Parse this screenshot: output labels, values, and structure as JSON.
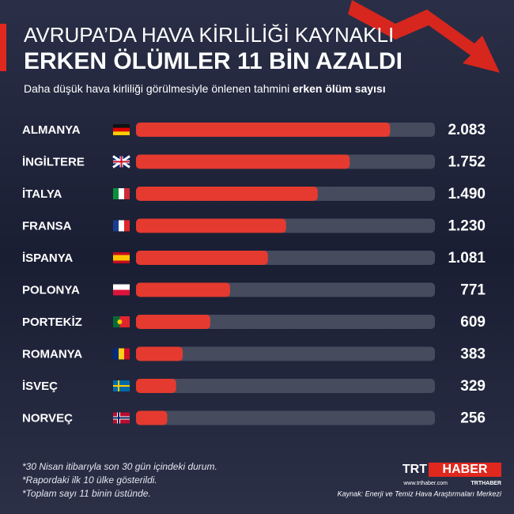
{
  "chart_data": {
    "type": "bar",
    "orientation": "horizontal",
    "title": "AVRUPA’DA HAVA KİRLİLİĞİ KAYNAKLI",
    "title_line2": "ERKEN ÖLÜMLER 11 BİN AZALDI",
    "subtitle": "Daha düşük hava kirliliği görülmesiyle önlenen tahmini ",
    "subtitle_emphasis": "erken ölüm sayısı",
    "categories": [
      "ALMANYA",
      "İNGİLTERE",
      "İTALYA",
      "FRANSA",
      "İSPANYA",
      "POLONYA",
      "PORTEKİZ",
      "ROMANYA",
      "İSVEÇ",
      "NORVEÇ"
    ],
    "values": [
      2083,
      1752,
      1490,
      1230,
      1081,
      771,
      609,
      383,
      329,
      256
    ],
    "value_labels": [
      "2.083",
      "1.752",
      "1.490",
      "1.230",
      "1.081",
      "771",
      "609",
      "383",
      "329",
      "256"
    ],
    "color": "#e53a2f",
    "notes": [
      "*30 Nisan itibarıyla son 30 gün içindeki durum.",
      "*Rapordaki ilk 10 ülke gösterildi.",
      "*Toplam sayı 11 binin üstünde."
    ],
    "source": "Kaynak: Enerji ve Temiz Hava Araştırmaları Merkezi",
    "brand": "TRT",
    "brand_2": "HABER",
    "website": "www.trthaber.com",
    "handle": "TRTHABER"
  }
}
